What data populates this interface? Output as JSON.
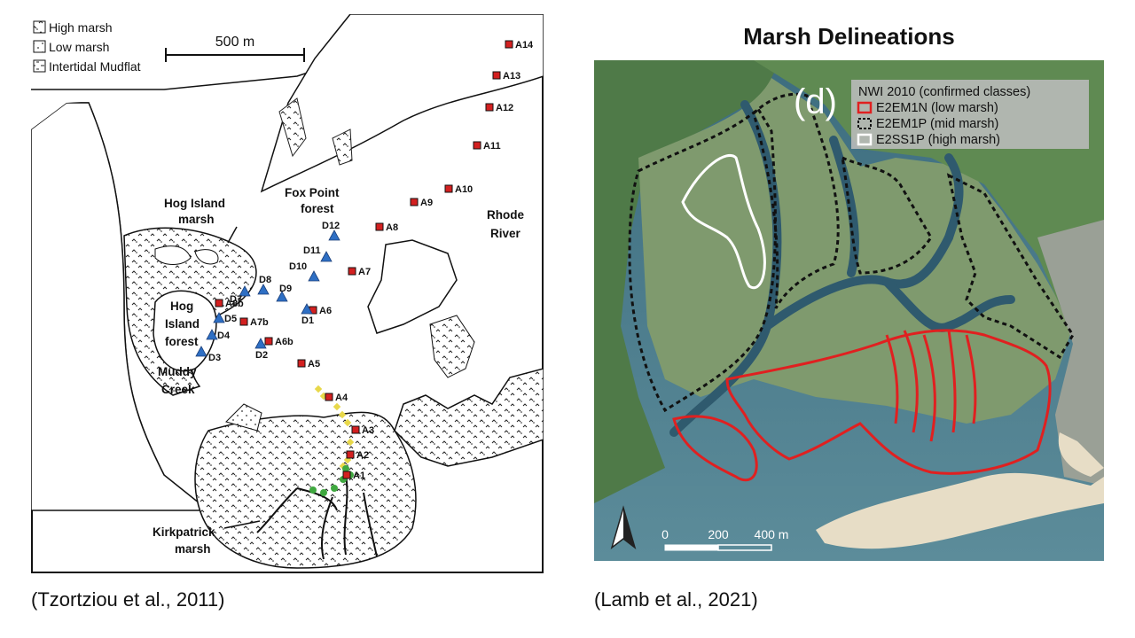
{
  "left_map": {
    "legend": [
      {
        "label": "High marsh",
        "pattern": "high-marsh"
      },
      {
        "label": "Low marsh",
        "pattern": "low-marsh"
      },
      {
        "label": "Intertidal Mudflat",
        "pattern": "mudflat"
      }
    ],
    "scalebar_label": "500 m",
    "place_labels": {
      "hog_island_marsh_1": "Hog Island",
      "hog_island_marsh_2": "marsh",
      "fox_point_1": "Fox Point",
      "fox_point_2": "forest",
      "rhode_river_1": "Rhode",
      "rhode_river_2": "River",
      "hog_island_forest_1": "Hog",
      "hog_island_forest_2": "Island",
      "hog_island_forest_3": "forest",
      "muddy_creek_1": "Muddy",
      "muddy_creek_2": "Creek",
      "kirkpatrick_1": "Kirkpatrick",
      "kirkpatrick_2": "marsh"
    },
    "stations_A": [
      "A14",
      "A13",
      "A12",
      "A11",
      "A10",
      "A9",
      "A8",
      "A7",
      "A6",
      "A5",
      "A4",
      "A3",
      "A2",
      "A1",
      "A8b",
      "A7b",
      "A6b"
    ],
    "stations_D": [
      "D12",
      "D11",
      "D10",
      "D9",
      "D8",
      "D7",
      "D5",
      "D4",
      "D3",
      "D2",
      "D1"
    ],
    "colors": {
      "station_square": "#d32020",
      "station_triangle": "#2e6fc4",
      "yellow_dot": "#e8d84a",
      "green_dot": "#3fa83f"
    }
  },
  "right_map": {
    "title": "Marsh Delineations",
    "panel_label": "(d)",
    "legend_title": "NWI 2010 (confirmed classes)",
    "legend": [
      {
        "label": "E2EM1N (low marsh)",
        "style": "red-outline"
      },
      {
        "label": "E2EM1P (mid marsh)",
        "style": "black-dashed"
      },
      {
        "label": "E2SS1P (high marsh)",
        "style": "white-outline"
      }
    ],
    "scale_ticks": [
      "0",
      "200",
      "400 m"
    ],
    "north_arrow": "north-arrow-icon",
    "colors": {
      "low_marsh": "#e02020",
      "mid_marsh": "#111111",
      "high_marsh": "#ffffff",
      "water": "#2f5a6e"
    }
  },
  "captions": {
    "left": "(Tzortziou et al., 2011)",
    "right": "(Lamb et al., 2021)"
  }
}
